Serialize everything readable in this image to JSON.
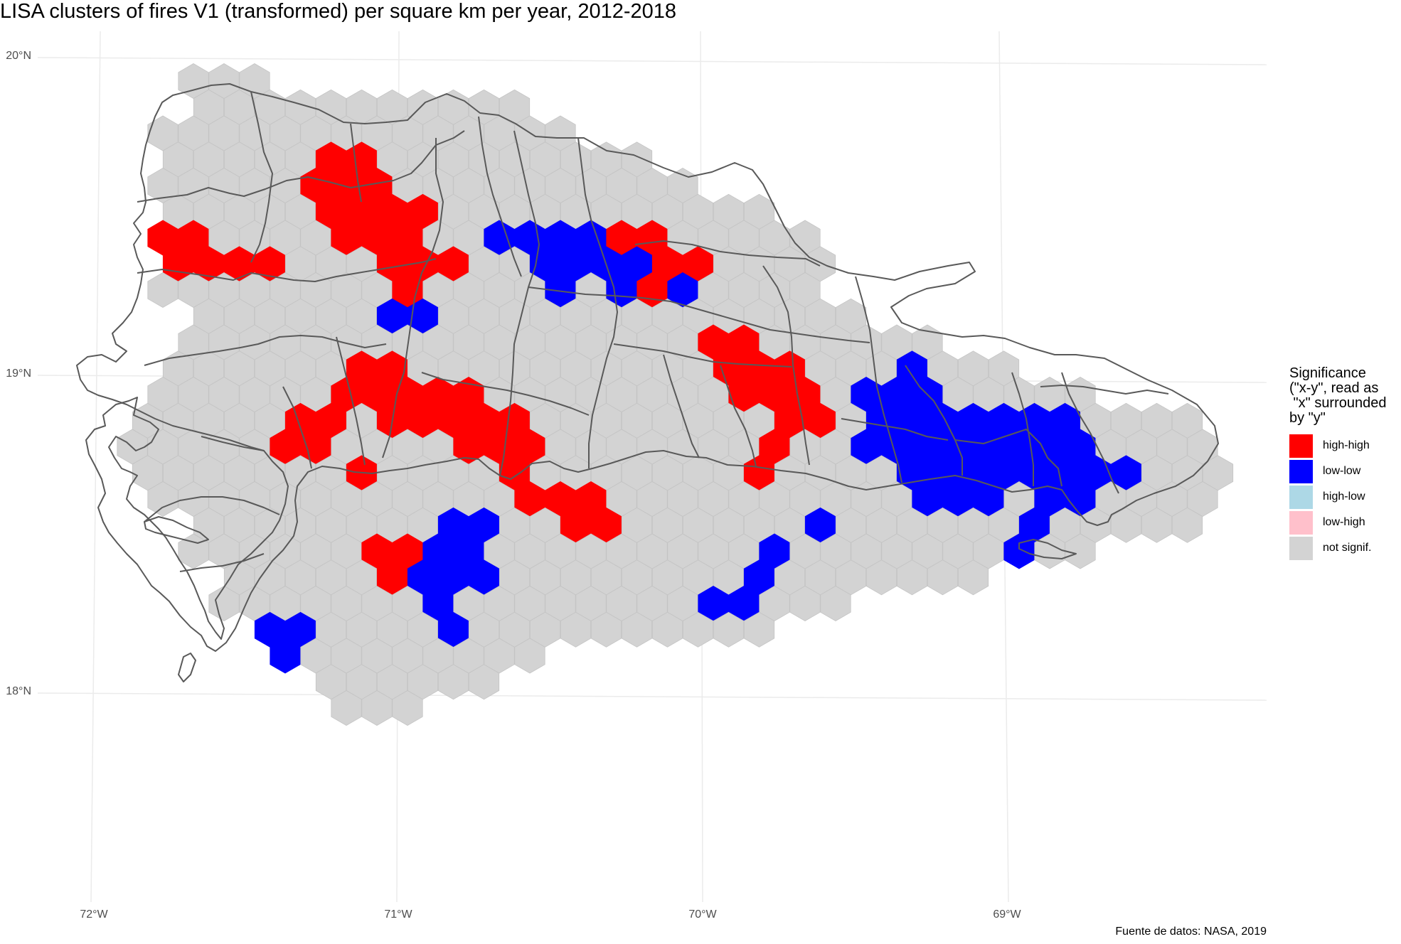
{
  "title": "LISA clusters of fires V1 (transformed) per square km per year, 2012-2018",
  "axes": {
    "y_ticks": [
      "20°N",
      "19°N",
      "18°N"
    ],
    "x_ticks": [
      "72°W",
      "71°W",
      "70°W",
      "69°W"
    ]
  },
  "legend": {
    "title": "Significance\n(\"x-y\", read as\n \"x\" surrounded\nby \"y\"",
    "items": [
      {
        "label": "high-high",
        "color": "#ff0000"
      },
      {
        "label": "low-low",
        "color": "#0000ff"
      },
      {
        "label": "high-low",
        "color": "#add8e6"
      },
      {
        "label": "low-high",
        "color": "#ffc0cb"
      },
      {
        "label": "not signif.",
        "color": "#d3d3d3"
      }
    ]
  },
  "caption": "Fuente de datos: NASA, 2019",
  "colors": {
    "hex_default": "#d3d3d3",
    "outline": "#595959",
    "graticule": "#ebebeb",
    "panel_border": "#333333"
  }
}
